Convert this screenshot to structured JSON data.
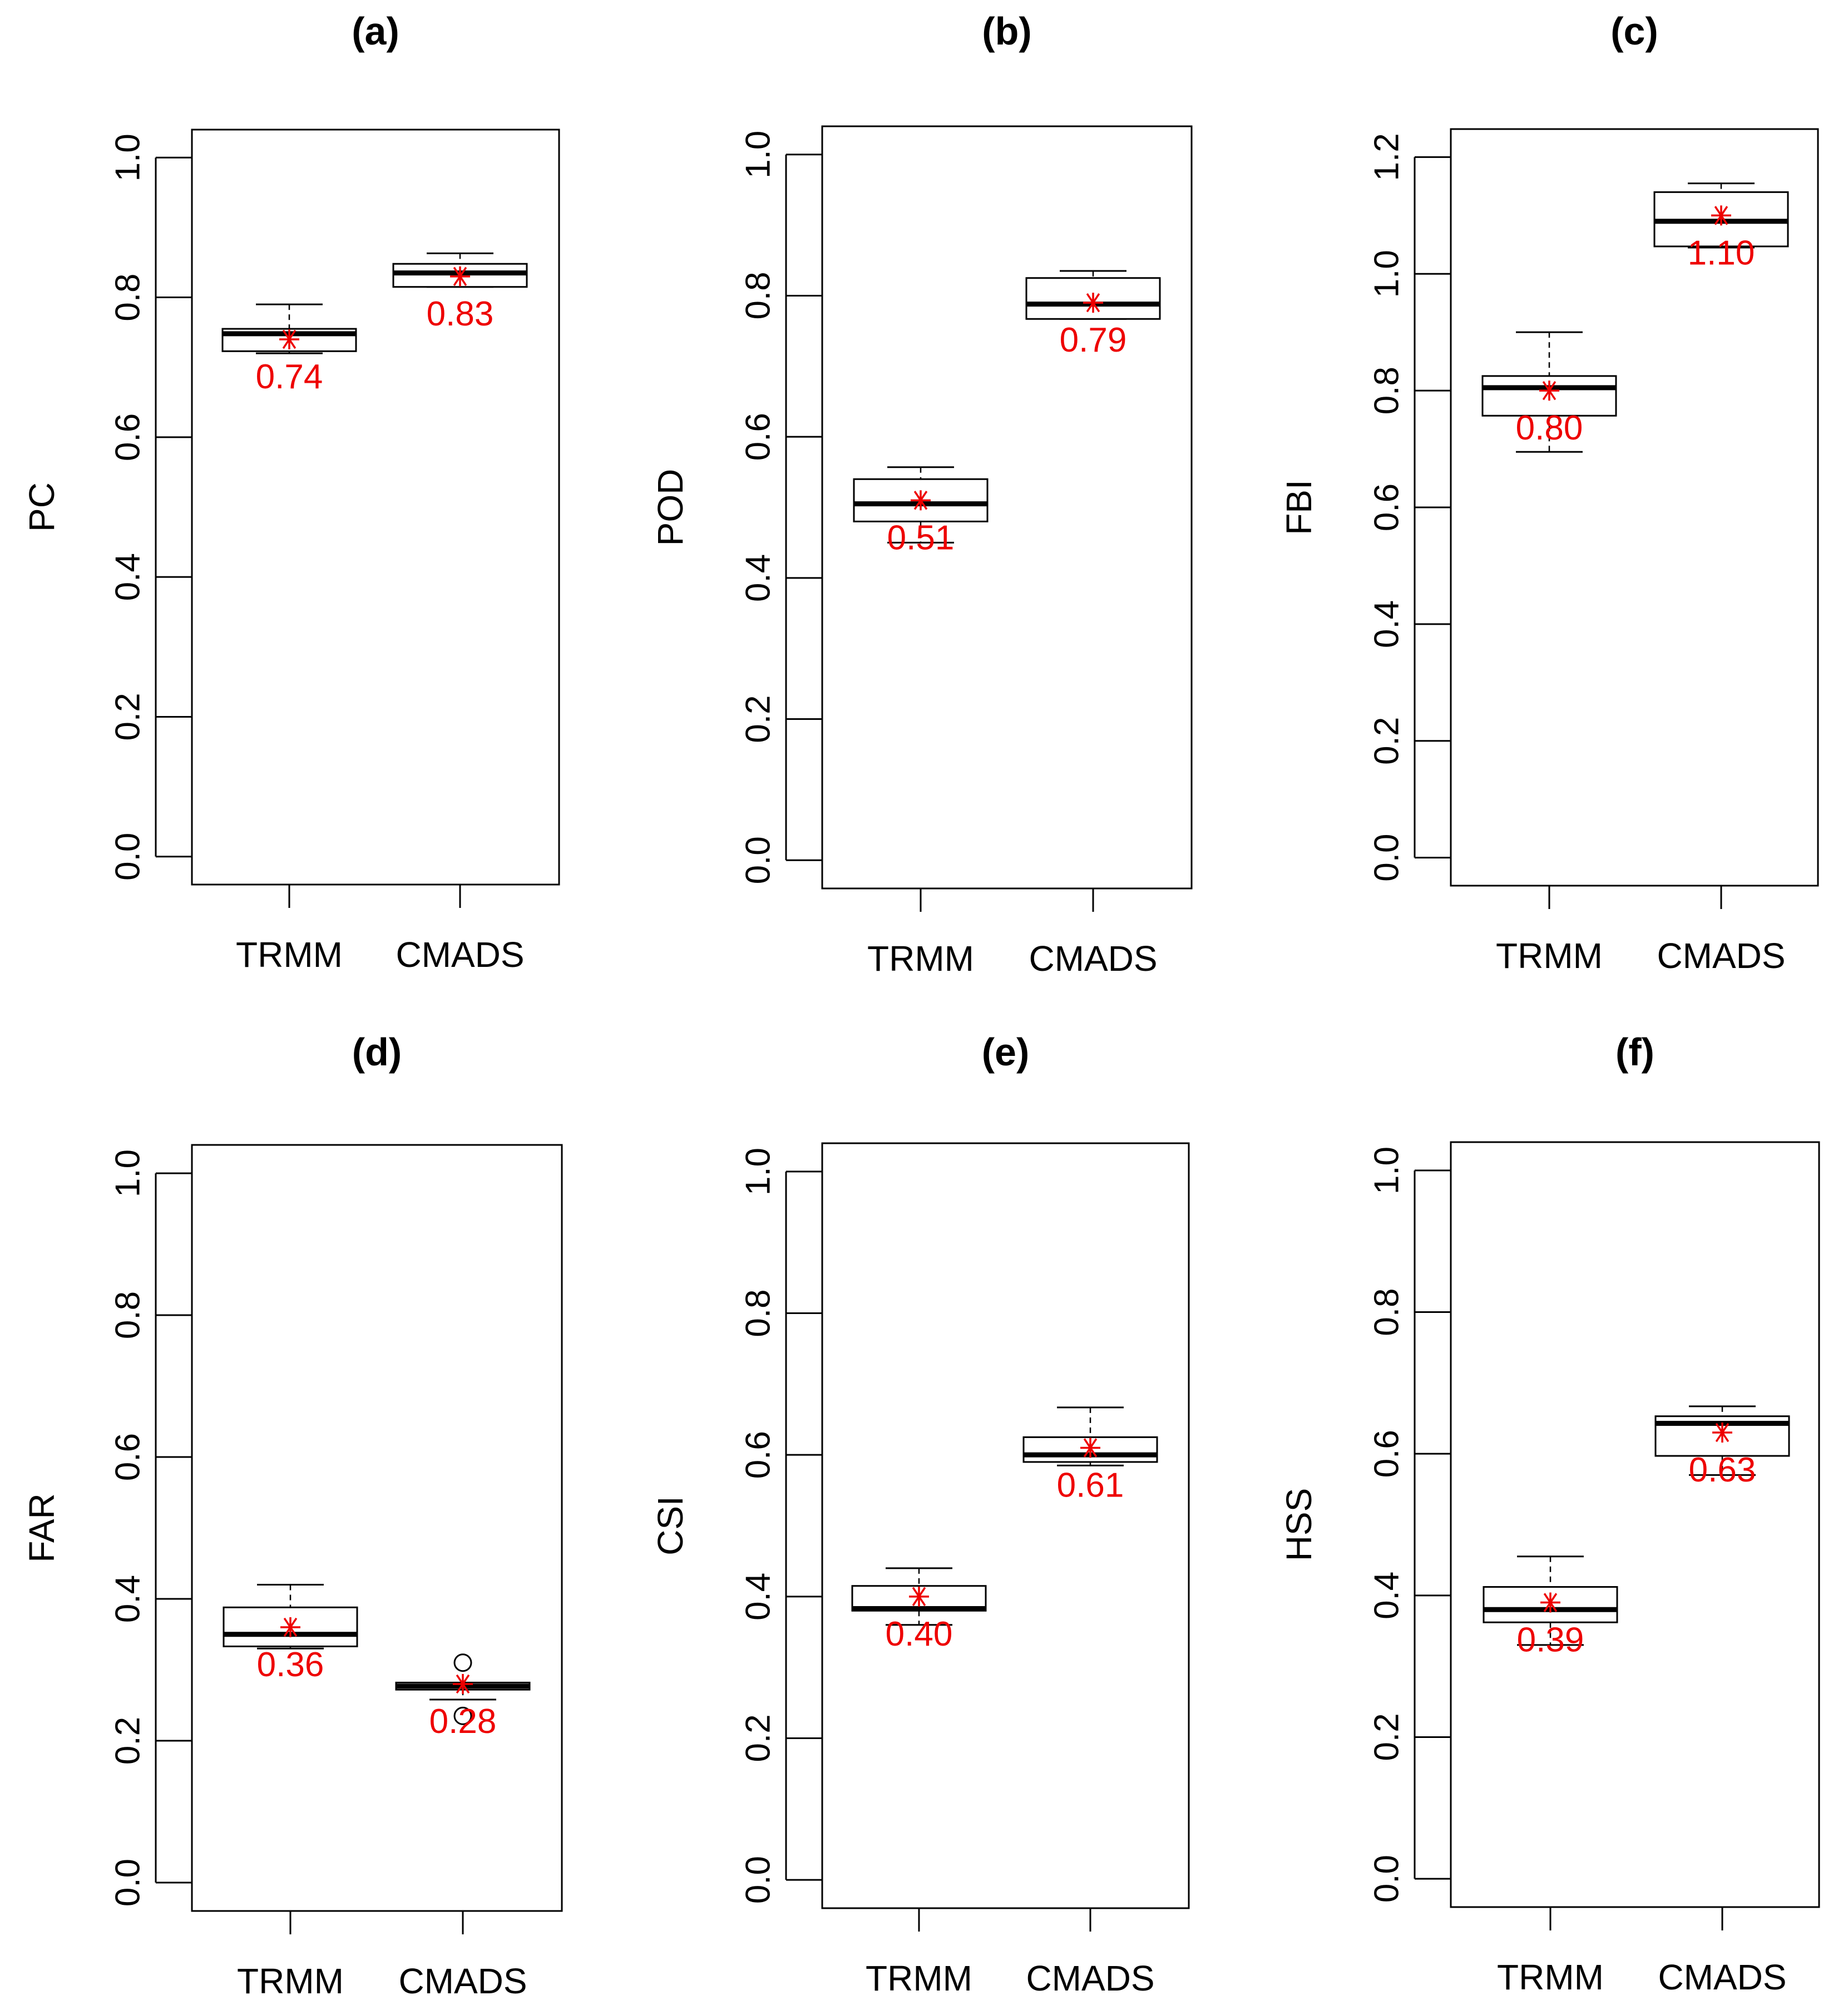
{
  "chart_data": [
    {
      "type": "boxplot",
      "panel_label": "(a)",
      "ylabel": "PC",
      "ylim": [
        0,
        1.0
      ],
      "yticks": [
        "0.0",
        "0.2",
        "0.4",
        "0.6",
        "0.8",
        "1.0"
      ],
      "categories": [
        "TRMM",
        "CMADS"
      ],
      "boxes": [
        {
          "name": "TRMM",
          "whisker_low": 0.72,
          "q1": 0.723,
          "median": 0.748,
          "q3": 0.755,
          "whisker_high": 0.79,
          "mean": 0.74,
          "mean_label": "0.74",
          "outliers": []
        },
        {
          "name": "CMADS",
          "whisker_low": 0.815,
          "q1": 0.815,
          "median": 0.835,
          "q3": 0.848,
          "whisker_high": 0.863,
          "mean": 0.83,
          "mean_label": "0.83",
          "outliers": []
        }
      ]
    },
    {
      "type": "boxplot",
      "panel_label": "(b)",
      "ylabel": "POD",
      "ylim": [
        0,
        1.0
      ],
      "yticks": [
        "0.0",
        "0.2",
        "0.4",
        "0.6",
        "0.8",
        "1.0"
      ],
      "categories": [
        "TRMM",
        "CMADS"
      ],
      "boxes": [
        {
          "name": "TRMM",
          "whisker_low": 0.45,
          "q1": 0.48,
          "median": 0.505,
          "q3": 0.54,
          "whisker_high": 0.557,
          "mean": 0.51,
          "mean_label": "0.51",
          "outliers": []
        },
        {
          "name": "CMADS",
          "whisker_low": 0.767,
          "q1": 0.767,
          "median": 0.788,
          "q3": 0.825,
          "whisker_high": 0.835,
          "mean": 0.79,
          "mean_label": "0.79",
          "outliers": []
        }
      ]
    },
    {
      "type": "boxplot",
      "panel_label": "(c)",
      "ylabel": "FBI",
      "ylim": [
        0,
        1.2
      ],
      "yticks": [
        "0.0",
        "0.2",
        "0.4",
        "0.6",
        "0.8",
        "1.0",
        "1.2"
      ],
      "categories": [
        "TRMM",
        "CMADS"
      ],
      "boxes": [
        {
          "name": "TRMM",
          "whisker_low": 0.695,
          "q1": 0.757,
          "median": 0.805,
          "q3": 0.825,
          "whisker_high": 0.9,
          "mean": 0.8,
          "mean_label": "0.80",
          "outliers": []
        },
        {
          "name": "CMADS",
          "whisker_low": 1.045,
          "q1": 1.047,
          "median": 1.09,
          "q3": 1.14,
          "whisker_high": 1.155,
          "mean": 1.1,
          "mean_label": "1.10",
          "outliers": []
        }
      ]
    },
    {
      "type": "boxplot",
      "panel_label": "(d)",
      "ylabel": "FAR",
      "ylim": [
        0,
        1.0
      ],
      "yticks": [
        "0.0",
        "0.2",
        "0.4",
        "0.6",
        "0.8",
        "1.0"
      ],
      "categories": [
        "TRMM",
        "CMADS"
      ],
      "boxes": [
        {
          "name": "TRMM",
          "whisker_low": 0.33,
          "q1": 0.333,
          "median": 0.35,
          "q3": 0.388,
          "whisker_high": 0.42,
          "mean": 0.36,
          "mean_label": "0.36",
          "outliers": []
        },
        {
          "name": "CMADS",
          "whisker_low": 0.258,
          "q1": 0.272,
          "median": 0.277,
          "q3": 0.282,
          "whisker_high": 0.282,
          "mean": 0.28,
          "mean_label": "0.28",
          "outliers": [
            0.31,
            0.235
          ]
        }
      ]
    },
    {
      "type": "boxplot",
      "panel_label": "(e)",
      "ylabel": "CSI",
      "ylim": [
        0,
        1.0
      ],
      "yticks": [
        "0.0",
        "0.2",
        "0.4",
        "0.6",
        "0.8",
        "1.0"
      ],
      "categories": [
        "TRMM",
        "CMADS"
      ],
      "boxes": [
        {
          "name": "TRMM",
          "whisker_low": 0.36,
          "q1": 0.38,
          "median": 0.383,
          "q3": 0.415,
          "whisker_high": 0.44,
          "mean": 0.4,
          "mean_label": "0.40",
          "outliers": []
        },
        {
          "name": "CMADS",
          "whisker_low": 0.585,
          "q1": 0.59,
          "median": 0.6,
          "q3": 0.625,
          "whisker_high": 0.667,
          "mean": 0.61,
          "mean_label": "0.61",
          "outliers": []
        }
      ]
    },
    {
      "type": "boxplot",
      "panel_label": "(f)",
      "ylabel": "HSS",
      "ylim": [
        0,
        1.0
      ],
      "yticks": [
        "0.0",
        "0.2",
        "0.4",
        "0.6",
        "0.8",
        "1.0"
      ],
      "categories": [
        "TRMM",
        "CMADS"
      ],
      "boxes": [
        {
          "name": "TRMM",
          "whisker_low": 0.33,
          "q1": 0.362,
          "median": 0.38,
          "q3": 0.412,
          "whisker_high": 0.455,
          "mean": 0.39,
          "mean_label": "0.39",
          "outliers": []
        },
        {
          "name": "CMADS",
          "whisker_low": 0.57,
          "q1": 0.597,
          "median": 0.643,
          "q3": 0.653,
          "whisker_high": 0.667,
          "mean": 0.63,
          "mean_label": "0.63",
          "outliers": []
        }
      ]
    }
  ],
  "colors": {
    "mean_marker": "#ee0000",
    "axis": "#000000",
    "box_fill": "#ffffff"
  }
}
